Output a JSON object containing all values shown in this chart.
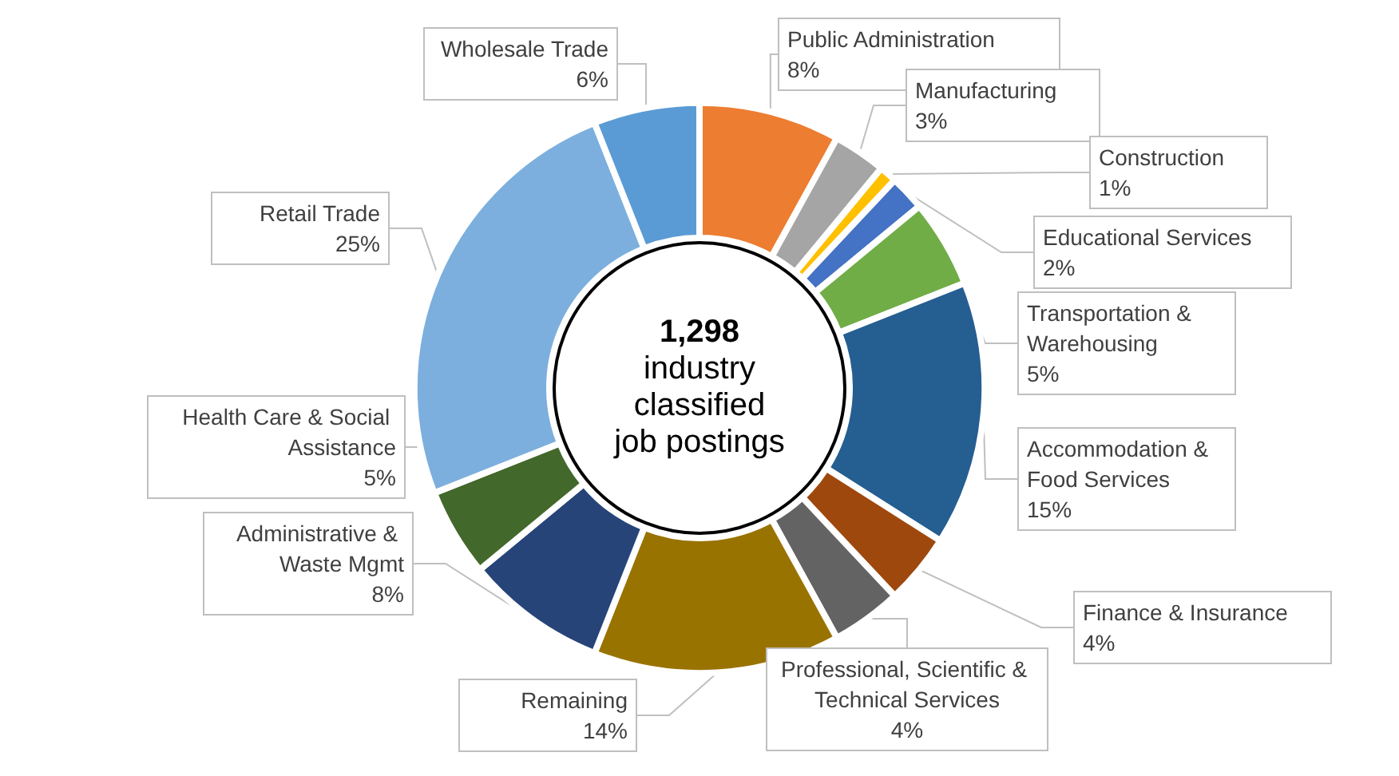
{
  "chart_data": {
    "type": "donut",
    "title": "1,298",
    "subtitle": "industry classified job postings",
    "categories": [
      "Public Administration",
      "Manufacturing",
      "Construction",
      "Educational Services",
      "Transportation & Warehousing",
      "Accommodation & Food Services",
      "Finance & Insurance",
      "Professional, Scientific & Technical Services",
      "Remaining",
      "Administrative & Waste Mgmt",
      "Health Care & Social Assistance",
      "Retail Trade",
      "Wholesale Trade"
    ],
    "values": [
      8,
      3,
      1,
      2,
      5,
      15,
      4,
      4,
      14,
      8,
      5,
      25,
      6
    ],
    "colors": [
      "#ed7d31",
      "#a5a5a5",
      "#ffc000",
      "#4472c4",
      "#70ad47",
      "#255e91",
      "#9e480e",
      "#636363",
      "#997300",
      "#264478",
      "#43682b",
      "#7cafdd",
      "#5b9bd5"
    ],
    "value_labels": [
      "8%",
      "3%",
      "1%",
      "2%",
      "5%",
      "15%",
      "4%",
      "4%",
      "14%",
      "8%",
      "5%",
      "25%",
      "6%"
    ],
    "legend": false
  }
}
